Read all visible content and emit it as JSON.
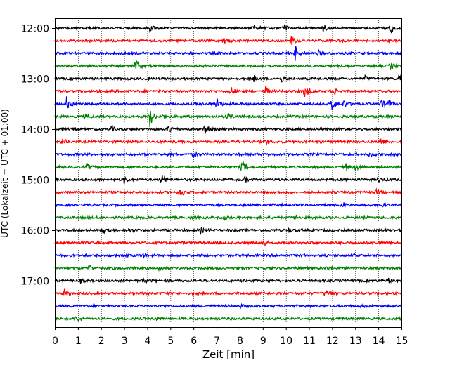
{
  "chart_data": {
    "type": "line",
    "title": "",
    "xlabel": "Zeit  [min]",
    "ylabel": "UTC (Lokalzeit = UTC + 01:00)",
    "xlim": [
      0,
      15
    ],
    "x_ticks": [
      0,
      1,
      2,
      3,
      4,
      5,
      6,
      7,
      8,
      9,
      10,
      11,
      12,
      13,
      14,
      15
    ],
    "y_ticks": [
      {
        "label": "12:00",
        "trace_index": 0
      },
      {
        "label": "13:00",
        "trace_index": 4
      },
      {
        "label": "14:00",
        "trace_index": 8
      },
      {
        "label": "15:00",
        "trace_index": 12
      },
      {
        "label": "16:00",
        "trace_index": 16
      },
      {
        "label": "17:00",
        "trace_index": 20
      }
    ],
    "trace_interval_minutes": 15,
    "trace_colors": [
      "#000000",
      "#ff0000",
      "#0000ff",
      "#008000"
    ],
    "vertical_grid": "dotted",
    "traces": [
      {
        "start": "12:00",
        "color": "#000000",
        "events": [
          {
            "t": 4.1,
            "a": 5
          },
          {
            "t": 8.6,
            "a": 4
          },
          {
            "t": 9.9,
            "a": 5
          },
          {
            "t": 11.6,
            "a": 7
          },
          {
            "t": 14.5,
            "a": 10
          }
        ]
      },
      {
        "start": "12:15",
        "color": "#ff0000",
        "events": [
          {
            "t": 7.3,
            "a": 4
          },
          {
            "t": 10.2,
            "a": 9
          }
        ]
      },
      {
        "start": "12:30",
        "color": "#0000ff",
        "events": [
          {
            "t": 10.4,
            "a": 12
          },
          {
            "t": 11.4,
            "a": 4
          }
        ]
      },
      {
        "start": "12:45",
        "color": "#008000",
        "events": [
          {
            "t": 3.5,
            "a": 11
          },
          {
            "t": 14.5,
            "a": 6
          }
        ]
      },
      {
        "start": "13:00",
        "color": "#000000",
        "events": [
          {
            "t": 8.6,
            "a": 5
          },
          {
            "t": 9.8,
            "a": 5
          },
          {
            "t": 13.4,
            "a": 4
          },
          {
            "t": 14.9,
            "a": 10
          }
        ]
      },
      {
        "start": "13:15",
        "color": "#ff0000",
        "events": [
          {
            "t": 7.6,
            "a": 7
          },
          {
            "t": 9.1,
            "a": 9
          },
          {
            "t": 10.8,
            "a": 14
          },
          {
            "t": 12.1,
            "a": 5
          }
        ]
      },
      {
        "start": "13:30",
        "color": "#0000ff",
        "events": [
          {
            "t": 0.5,
            "a": 10
          },
          {
            "t": 7.0,
            "a": 8
          },
          {
            "t": 12.0,
            "a": 9
          },
          {
            "t": 12.5,
            "a": 6
          },
          {
            "t": 14.1,
            "a": 7
          },
          {
            "t": 14.4,
            "a": 8
          }
        ]
      },
      {
        "start": "13:45",
        "color": "#008000",
        "events": [
          {
            "t": 1.3,
            "a": 4
          },
          {
            "t": 4.1,
            "a": 16
          },
          {
            "t": 4.6,
            "a": 4
          },
          {
            "t": 7.5,
            "a": 4
          }
        ]
      },
      {
        "start": "14:00",
        "color": "#000000",
        "events": [
          {
            "t": 2.4,
            "a": 5
          },
          {
            "t": 4.9,
            "a": 7
          },
          {
            "t": 6.5,
            "a": 8
          }
        ]
      },
      {
        "start": "14:15",
        "color": "#ff0000",
        "events": [
          {
            "t": 0.3,
            "a": 6
          },
          {
            "t": 9.1,
            "a": 4
          },
          {
            "t": 14.1,
            "a": 6
          }
        ]
      },
      {
        "start": "14:30",
        "color": "#0000ff",
        "events": [
          {
            "t": 6.0,
            "a": 4
          },
          {
            "t": 13.6,
            "a": 4
          }
        ]
      },
      {
        "start": "14:45",
        "color": "#008000",
        "events": [
          {
            "t": 1.4,
            "a": 4
          },
          {
            "t": 8.1,
            "a": 11
          },
          {
            "t": 12.6,
            "a": 5
          },
          {
            "t": 13.0,
            "a": 6
          }
        ]
      },
      {
        "start": "15:00",
        "color": "#000000",
        "events": [
          {
            "t": 3.0,
            "a": 5
          },
          {
            "t": 4.6,
            "a": 7
          },
          {
            "t": 8.2,
            "a": 4
          },
          {
            "t": 14.0,
            "a": 3
          }
        ]
      },
      {
        "start": "15:15",
        "color": "#ff0000",
        "events": [
          {
            "t": 5.4,
            "a": 10
          },
          {
            "t": 13.9,
            "a": 4
          }
        ]
      },
      {
        "start": "15:30",
        "color": "#0000ff",
        "events": [
          {
            "t": 12.4,
            "a": 6
          },
          {
            "t": 14.1,
            "a": 4
          }
        ]
      },
      {
        "start": "15:45",
        "color": "#008000",
        "events": [
          {
            "t": 7.3,
            "a": 4
          },
          {
            "t": 10.4,
            "a": 3
          }
        ]
      },
      {
        "start": "16:00",
        "color": "#000000",
        "events": [
          {
            "t": 2.1,
            "a": 4
          },
          {
            "t": 3.1,
            "a": 5
          },
          {
            "t": 6.3,
            "a": 4
          },
          {
            "t": 10.1,
            "a": 3
          }
        ]
      },
      {
        "start": "16:15",
        "color": "#ff0000",
        "events": [
          {
            "t": 9.0,
            "a": 6
          },
          {
            "t": 13.9,
            "a": 3
          }
        ]
      },
      {
        "start": "16:30",
        "color": "#0000ff",
        "events": [
          {
            "t": 3.8,
            "a": 3
          },
          {
            "t": 13.0,
            "a": 3
          }
        ]
      },
      {
        "start": "16:45",
        "color": "#008000",
        "events": [
          {
            "t": 1.5,
            "a": 4
          },
          {
            "t": 4.5,
            "a": 3
          },
          {
            "t": 11.8,
            "a": 3
          }
        ]
      },
      {
        "start": "17:00",
        "color": "#000000",
        "events": [
          {
            "t": 1.1,
            "a": 3
          },
          {
            "t": 3.8,
            "a": 3
          },
          {
            "t": 14.4,
            "a": 4
          }
        ]
      },
      {
        "start": "17:15",
        "color": "#ff0000",
        "events": [
          {
            "t": 0.4,
            "a": 4
          },
          {
            "t": 11.7,
            "a": 7
          }
        ]
      },
      {
        "start": "17:30",
        "color": "#0000ff",
        "events": [
          {
            "t": 8.0,
            "a": 3
          },
          {
            "t": 13.2,
            "a": 3
          }
        ]
      },
      {
        "start": "17:45",
        "color": "#008000",
        "events": [
          {
            "t": 0.9,
            "a": 6
          },
          {
            "t": 4.4,
            "a": 3
          }
        ]
      }
    ]
  }
}
